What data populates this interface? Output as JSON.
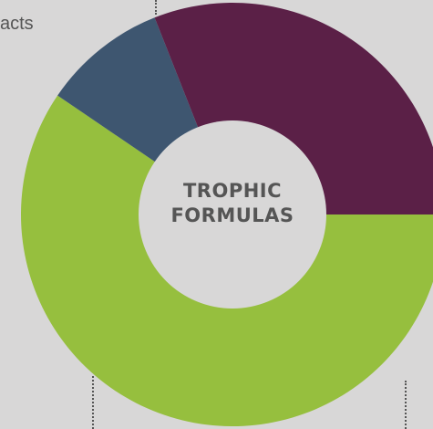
{
  "chart_data": {
    "type": "pie",
    "style": "donut",
    "title": [
      "TROPHIC",
      "FORMULAS"
    ],
    "partial_labels": [
      "acts"
    ],
    "start_angle_deg": 90,
    "direction": "clockwise",
    "slices": [
      {
        "label": "",
        "value": 59.5,
        "color": "#96bf3e"
      },
      {
        "label": "",
        "value": 9.5,
        "color": "#3e5670"
      },
      {
        "label": "",
        "value": 31.0,
        "color": "#5b2047"
      }
    ],
    "center_fill": "#d8d7d7",
    "leader_color": "#555555",
    "text_color": "#555555"
  }
}
